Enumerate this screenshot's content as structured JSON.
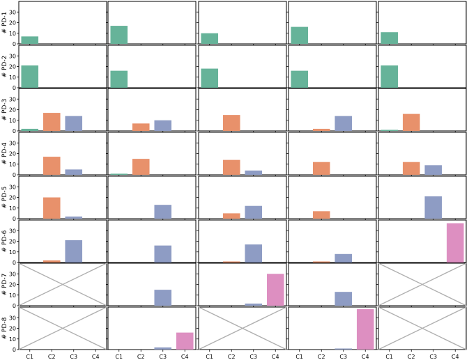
{
  "chart_data": {
    "type": "bar",
    "layout": "small-multiples grid, 8 rows x 5 columns, shared axes",
    "categories": [
      "C1",
      "C2",
      "C3",
      "C4"
    ],
    "category_colors": {
      "C1": "#66b399",
      "C2": "#e8916b",
      "C3": "#8e9cc4",
      "C4": "#dd8fc1"
    },
    "ylim": [
      0,
      40
    ],
    "yticks": [
      0,
      10,
      20,
      30
    ],
    "row_labels": [
      "# PD-1",
      "# PD-2",
      "# PD-3",
      "# PD-4",
      "# PD-5",
      "# PD-6",
      "# PD-7",
      "# PD-8"
    ],
    "grid": false,
    "empty_panel_style": "crossed-out (X)",
    "panels": [
      [
        {
          "values": [
            7,
            0,
            0,
            0
          ]
        },
        {
          "values": [
            17,
            0,
            0,
            0
          ]
        },
        {
          "values": [
            10,
            0,
            0,
            0
          ]
        },
        {
          "values": [
            16,
            0,
            0,
            0
          ]
        },
        {
          "values": [
            11,
            0,
            0,
            0
          ]
        }
      ],
      [
        {
          "values": [
            21,
            0,
            0,
            0
          ]
        },
        {
          "values": [
            16,
            0,
            0,
            0
          ]
        },
        {
          "values": [
            18,
            0,
            0,
            0
          ]
        },
        {
          "values": [
            16,
            0,
            0,
            0
          ]
        },
        {
          "values": [
            21,
            0,
            0,
            0
          ]
        }
      ],
      [
        {
          "values": [
            2,
            17,
            14,
            0
          ]
        },
        {
          "values": [
            0,
            7,
            10,
            0
          ]
        },
        {
          "values": [
            0,
            15,
            0,
            0
          ]
        },
        {
          "values": [
            0,
            2,
            14,
            0
          ]
        },
        {
          "values": [
            1,
            16,
            0,
            0
          ]
        }
      ],
      [
        {
          "values": [
            0,
            17,
            5,
            0
          ]
        },
        {
          "values": [
            1,
            15,
            0,
            0
          ]
        },
        {
          "values": [
            0,
            14,
            4,
            0
          ]
        },
        {
          "values": [
            0,
            12,
            0,
            0
          ]
        },
        {
          "values": [
            0,
            12,
            9,
            0
          ]
        }
      ],
      [
        {
          "values": [
            0,
            20,
            2,
            0
          ]
        },
        {
          "values": [
            0,
            0,
            13,
            0
          ]
        },
        {
          "values": [
            0,
            5,
            12,
            0
          ]
        },
        {
          "values": [
            0,
            7,
            0,
            0
          ]
        },
        {
          "values": [
            0,
            0,
            21,
            0
          ]
        }
      ],
      [
        {
          "values": [
            0,
            2,
            21,
            0
          ]
        },
        {
          "values": [
            0,
            0,
            16,
            0
          ]
        },
        {
          "values": [
            0,
            1,
            17,
            0
          ]
        },
        {
          "values": [
            0,
            1,
            8,
            0
          ]
        },
        {
          "values": [
            0,
            0,
            0,
            37
          ]
        }
      ],
      [
        {
          "empty": true
        },
        {
          "values": [
            0,
            0,
            15,
            0
          ]
        },
        {
          "values": [
            0,
            0,
            2,
            30
          ]
        },
        {
          "values": [
            0,
            0,
            13,
            0
          ]
        },
        {
          "empty": true
        }
      ],
      [
        {
          "empty": true
        },
        {
          "values": [
            0,
            0,
            2,
            16
          ]
        },
        {
          "empty": true
        },
        {
          "values": [
            0,
            0,
            1,
            38
          ]
        },
        {
          "empty": true
        }
      ]
    ]
  }
}
